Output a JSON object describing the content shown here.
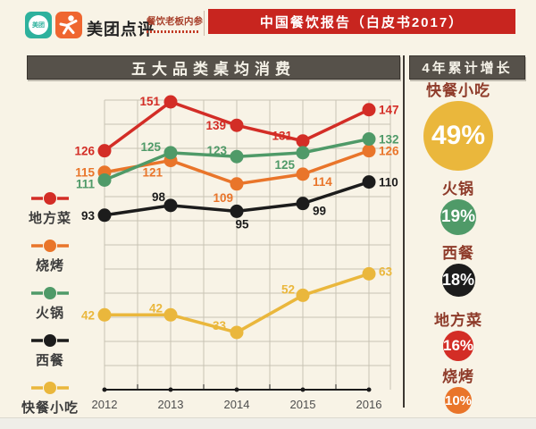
{
  "header": {
    "brand": "美团点评",
    "meituan_badge": "美团",
    "neican_title": "餐饮老板内参",
    "banner": "中国餐饮报告（白皮书2017）"
  },
  "left_panel": {
    "title": "五大品类桌均消费"
  },
  "right_panel": {
    "title": "4年累计增长",
    "items": [
      {
        "label": "快餐小吃",
        "value": "49%",
        "color": "#eab73c",
        "size": 78
      },
      {
        "label": "火锅",
        "value": "19%",
        "color": "#4f9a68",
        "size": 40
      },
      {
        "label": "西餐",
        "value": "18%",
        "color": "#1c1c1c",
        "size": 37
      },
      {
        "label": "地方菜",
        "value": "16%",
        "color": "#d32d26",
        "size": 34
      },
      {
        "label": "烧烤",
        "value": "10%",
        "color": "#e9752a",
        "size": 30
      }
    ]
  },
  "chart_data": {
    "type": "line",
    "title": "五大品类桌均消费",
    "x": [
      "2012",
      "2013",
      "2014",
      "2015",
      "2016"
    ],
    "series": [
      {
        "name": "地方菜",
        "color": "#d32d26",
        "values": [
          126,
          151,
          139,
          131,
          147
        ]
      },
      {
        "name": "烧烤",
        "color": "#e9752a",
        "values": [
          115,
          121,
          109,
          114,
          126
        ]
      },
      {
        "name": "火锅",
        "color": "#4f9a68",
        "values": [
          111,
          125,
          123,
          125,
          132
        ]
      },
      {
        "name": "西餐",
        "color": "#1c1c1c",
        "values": [
          93,
          98,
          95,
          99,
          110
        ]
      },
      {
        "name": "快餐小吃",
        "color": "#eab73c",
        "values": [
          42,
          42,
          33,
          52,
          63
        ]
      }
    ],
    "ylim": [
      20,
      165
    ],
    "grid": true,
    "legend_position": "left",
    "value_labels": true
  }
}
